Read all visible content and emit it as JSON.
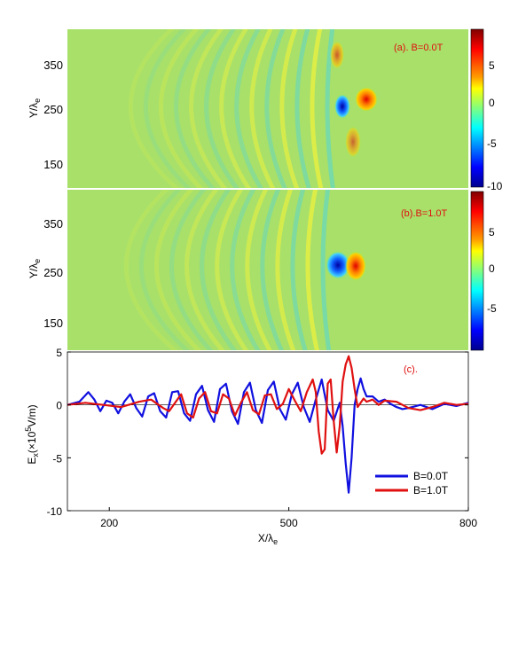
{
  "panels": [
    {
      "label": "(a). B=0.0T",
      "ylabel": "Y/λ",
      "ylabel_sub": "e",
      "yticks": [
        "350",
        "250",
        "150"
      ],
      "colorbar_ticks": [
        "5",
        "0",
        "-5",
        "-10"
      ],
      "colorbar_range": [
        -10,
        8.5
      ]
    },
    {
      "label": "(b).B=1.0T",
      "ylabel": "Y/λ",
      "ylabel_sub": "e",
      "yticks": [
        "350",
        "250",
        "150"
      ],
      "colorbar_ticks": [
        "5",
        "0",
        "-5"
      ],
      "colorbar_range": [
        -8,
        8.5
      ]
    }
  ],
  "chart_data": {
    "type": "line",
    "label": "(c).",
    "xlabel": "X/λ",
    "xlabel_sub": "e",
    "ylabel": "E",
    "ylabel_parts": {
      "sub": "x",
      "mid": "(×10",
      "sup": "5",
      "tail": "V/m)"
    },
    "xlim": [
      130,
      800
    ],
    "ylim": [
      -10,
      5
    ],
    "xticks": [
      "200",
      "500",
      "800"
    ],
    "yticks": [
      "5",
      "0",
      "-5",
      "-10"
    ],
    "legend_position": "bottom-right",
    "series": [
      {
        "name": "B=0.0T",
        "color": "#1010e0",
        "x": [
          130,
          150,
          165,
          175,
          185,
          195,
          205,
          215,
          225,
          235,
          245,
          255,
          265,
          275,
          285,
          295,
          305,
          315,
          325,
          335,
          345,
          355,
          365,
          375,
          385,
          395,
          405,
          415,
          425,
          435,
          445,
          455,
          465,
          475,
          485,
          495,
          505,
          515,
          525,
          535,
          545,
          555,
          565,
          575,
          585,
          590,
          595,
          600,
          605,
          610,
          615,
          620,
          625,
          630,
          640,
          650,
          660,
          670,
          680,
          690,
          700,
          720,
          740,
          760,
          780,
          800
        ],
        "y": [
          0,
          0.3,
          1.2,
          0.5,
          -0.6,
          0.4,
          0.2,
          -0.8,
          0.3,
          1.0,
          -0.3,
          -1.1,
          0.8,
          1.1,
          -0.6,
          -1.2,
          1.2,
          1.3,
          -0.8,
          -1.5,
          1.0,
          1.8,
          -0.5,
          -1.6,
          1.5,
          2.0,
          -0.6,
          -1.8,
          1.2,
          2.1,
          -0.5,
          -1.7,
          1.4,
          2.2,
          -0.4,
          -1.4,
          1.0,
          2.1,
          -0.2,
          -1.6,
          0.5,
          2.4,
          -0.5,
          -1.5,
          0.2,
          -2.0,
          -5.5,
          -8.3,
          -5.0,
          0.0,
          1.5,
          2.5,
          1.5,
          0.8,
          0.8,
          0.3,
          0.5,
          0.1,
          -0.2,
          -0.4,
          -0.3,
          0.0,
          -0.4,
          0.1,
          -0.1,
          0.2
        ]
      },
      {
        "name": "B=1.0T",
        "color": "#e01010",
        "x": [
          130,
          160,
          190,
          220,
          250,
          270,
          290,
          300,
          310,
          320,
          330,
          340,
          350,
          360,
          370,
          380,
          390,
          400,
          410,
          420,
          430,
          440,
          450,
          460,
          470,
          480,
          490,
          500,
          510,
          520,
          530,
          540,
          545,
          550,
          555,
          560,
          565,
          570,
          575,
          580,
          585,
          590,
          595,
          600,
          605,
          610,
          615,
          620,
          625,
          630,
          640,
          650,
          660,
          680,
          700,
          720,
          740,
          760,
          780,
          800
        ],
        "y": [
          0,
          0.2,
          0,
          -0.2,
          0.3,
          0.5,
          -0.3,
          -0.6,
          0.2,
          1.0,
          -0.8,
          -1.2,
          0.6,
          1.2,
          -0.6,
          -0.8,
          1.0,
          0.6,
          -1.0,
          0.2,
          1.2,
          -0.5,
          -0.9,
          0.9,
          1.0,
          -0.4,
          0.1,
          1.5,
          0.4,
          -0.6,
          1.2,
          2.4,
          1.2,
          -2.5,
          -4.6,
          -4.2,
          2.0,
          2.4,
          -1.5,
          -4.5,
          -2.0,
          2.2,
          3.8,
          4.6,
          3.5,
          1.5,
          -0.2,
          0.2,
          0.6,
          0.3,
          0.5,
          0.0,
          0.4,
          0.3,
          -0.3,
          -0.5,
          -0.2,
          0.2,
          0.0,
          0.1
        ]
      }
    ]
  }
}
